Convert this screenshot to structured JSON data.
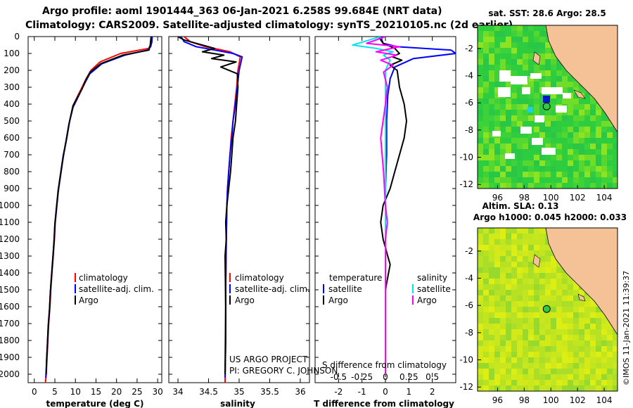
{
  "header": {
    "line1": "Argo profile: aoml 1901444_363 06-Jan-2021 6.258S 99.684E (NRT data)",
    "line2": "Climatology: CARS2009. Satellite-adjusted climatology: synTS_20210105.nc (2d earlier)"
  },
  "colors": {
    "climatology": "#ff0000",
    "satellite_temp": "#0000ff",
    "argo": "#000000",
    "satellite_sal": "#00e5ee",
    "argo_sal": "#ff00ff",
    "land": "#f5c297",
    "sea": "#2ecc40"
  },
  "chart_data": [
    {
      "type": "line",
      "name": "temperature-panel",
      "xlabel": "temperature (deg C)",
      "ylabel": "",
      "xlim": [
        -1.5,
        31
      ],
      "ylim": [
        2050,
        0
      ],
      "xticks": [
        0,
        5,
        10,
        15,
        20,
        25,
        30
      ],
      "yticks": [
        0,
        100,
        200,
        300,
        400,
        500,
        600,
        700,
        800,
        900,
        1000,
        1100,
        1200,
        1300,
        1400,
        1500,
        1600,
        1700,
        1800,
        1900,
        2000
      ],
      "legend": [
        "climatology",
        "satellite-adj. clim.",
        "Argo"
      ],
      "series": [
        {
          "name": "climatology",
          "color": "#ff0000",
          "x": [
            28.7,
            28.5,
            27.8,
            21,
            16,
            13.8,
            12.6,
            11.6,
            10.6,
            9.6,
            8.6,
            7.9,
            7.1,
            6.5,
            5.9,
            5.5,
            5.1,
            4.9,
            4.6,
            4.3,
            4.0,
            3.8,
            3.5,
            3.3,
            3.1,
            2.9,
            2.7
          ],
          "y": [
            0,
            40,
            70,
            100,
            150,
            200,
            250,
            300,
            350,
            400,
            500,
            600,
            700,
            800,
            900,
            1000,
            1100,
            1200,
            1300,
            1400,
            1500,
            1600,
            1700,
            1800,
            1900,
            2000,
            2050
          ]
        },
        {
          "name": "satellite-adj. clim.",
          "color": "#0000ff",
          "x": [
            28.6,
            28.6,
            28.3,
            27.5,
            22,
            16.5,
            13.5,
            12.4,
            11.4,
            10.4,
            9.4,
            8.4,
            7.7,
            7.0,
            6.4,
            5.8,
            5.4,
            5.0,
            4.8,
            4.5,
            4.2,
            3.9,
            3.7,
            3.4,
            3.2,
            3.0,
            2.8
          ],
          "y": [
            0,
            30,
            60,
            80,
            110,
            160,
            220,
            270,
            320,
            370,
            420,
            520,
            620,
            720,
            820,
            920,
            1020,
            1120,
            1220,
            1320,
            1420,
            1520,
            1620,
            1720,
            1820,
            1920,
            2020
          ]
        },
        {
          "name": "Argo",
          "color": "#000000",
          "x": [
            28.4,
            28.2,
            27.9,
            21.5,
            16.2,
            13.6,
            12.5,
            11.6,
            10.5,
            9.4,
            8.5,
            7.8,
            7.0,
            6.4,
            5.8,
            5.4,
            5.0,
            4.8,
            4.5,
            4.2,
            3.9,
            3.7,
            3.4,
            3.2,
            3.0,
            2.9
          ],
          "y": [
            0,
            50,
            80,
            110,
            160,
            210,
            260,
            310,
            360,
            410,
            510,
            610,
            710,
            810,
            910,
            1010,
            1110,
            1210,
            1310,
            1410,
            1510,
            1610,
            1710,
            1810,
            1910,
            2000
          ]
        }
      ]
    },
    {
      "type": "line",
      "name": "salinity-panel",
      "xlabel": "salinity",
      "ylabel": "",
      "xlim": [
        33.85,
        36.15
      ],
      "ylim": [
        2050,
        0
      ],
      "xticks": [
        34,
        34.5,
        35,
        35.5,
        36
      ],
      "xtick_labels": [
        "34",
        "34.5",
        "35",
        "35.5",
        "36"
      ],
      "legend": [
        "climatology",
        "satellite-adj. clim.",
        "Argo"
      ],
      "series": [
        {
          "name": "climatology",
          "color": "#ff0000",
          "x": [
            34.1,
            34.2,
            34.45,
            34.85,
            35.02,
            34.98,
            34.96,
            34.93,
            34.9,
            34.87,
            34.85,
            34.83,
            34.81,
            34.8,
            34.79,
            34.78,
            34.78,
            34.77
          ],
          "y": [
            0,
            30,
            60,
            90,
            120,
            200,
            300,
            400,
            500,
            600,
            700,
            800,
            900,
            1000,
            1200,
            1500,
            1800,
            2050
          ]
        },
        {
          "name": "satellite-adj. clim.",
          "color": "#0000ff",
          "x": [
            34.05,
            34.1,
            34.3,
            34.6,
            34.9,
            35.05,
            35.0,
            34.97,
            34.94,
            34.9,
            34.88,
            34.85,
            34.83,
            34.81,
            34.8,
            34.79,
            34.78,
            34.78,
            34.77
          ],
          "y": [
            0,
            30,
            60,
            80,
            100,
            120,
            200,
            300,
            400,
            500,
            600,
            700,
            800,
            900,
            1000,
            1200,
            1500,
            1800,
            2020
          ]
        },
        {
          "name": "Argo",
          "color": "#000000",
          "x": [
            34.0,
            34.1,
            34.6,
            34.4,
            34.75,
            34.55,
            34.95,
            34.7,
            34.97,
            34.98,
            34.96,
            34.94,
            34.9,
            34.88,
            34.86,
            34.83,
            34.8,
            34.78,
            34.79,
            34.77,
            34.78,
            34.77
          ],
          "y": [
            0,
            20,
            70,
            90,
            110,
            130,
            150,
            180,
            220,
            300,
            400,
            500,
            600,
            700,
            800,
            900,
            1000,
            1100,
            1200,
            1300,
            1600,
            2000
          ]
        }
      ]
    },
    {
      "type": "line",
      "name": "difference-panel",
      "xlabel": "T difference from climatology",
      "ylabel": "",
      "xlim": [
        -3,
        3
      ],
      "ylim": [
        2050,
        0
      ],
      "xticks": [
        -2,
        -1,
        0,
        1,
        2
      ],
      "xtick_labels": [
        "-2",
        "-1",
        "0",
        "1",
        "2"
      ],
      "s_xticks": [
        -0.5,
        -0.25,
        0,
        0.25,
        0.5
      ],
      "s_xtick_labels": [
        "-0.5",
        "-0.25",
        "0",
        "0.25",
        "0.5"
      ],
      "s_xlim": [
        -0.75,
        0.75
      ],
      "s_xlabel": "S difference from climatology",
      "legend_temperature_title": "temperature",
      "legend_salinity_title": "salinity",
      "legend_temperature": [
        "satellite",
        "Argo"
      ],
      "legend_salinity": [
        "satellite",
        "Argo"
      ],
      "series": [
        {
          "name": "temperature satellite",
          "color": "#0000ff",
          "axis": "T",
          "x": [
            -0.2,
            -0.1,
            0.5,
            2.8,
            3.0,
            1.2,
            0.4,
            0.2,
            0.1,
            0.05,
            0.05,
            0.0,
            0.0,
            0.0,
            0.0
          ],
          "y": [
            0,
            40,
            60,
            80,
            100,
            130,
            180,
            250,
            350,
            500,
            700,
            900,
            1200,
            1600,
            2000
          ]
        },
        {
          "name": "temperature Argo",
          "color": "#000000",
          "axis": "T",
          "x": [
            -0.3,
            -0.1,
            0.4,
            0.6,
            0.3,
            0.7,
            0.2,
            0.5,
            0.6,
            0.8,
            0.9,
            0.8,
            0.6,
            0.4,
            0.2,
            -0.1,
            -0.2,
            -0.1,
            0.1,
            0.2,
            0.0,
            0.0,
            0.0
          ],
          "y": [
            0,
            40,
            70,
            100,
            120,
            140,
            170,
            200,
            300,
            400,
            500,
            600,
            700,
            800,
            900,
            1000,
            1100,
            1200,
            1300,
            1350,
            1500,
            1800,
            2000
          ]
        },
        {
          "name": "salinity satellite",
          "color": "#00e5ee",
          "axis": "S",
          "x": [
            -0.05,
            -0.35,
            -0.1,
            0.08,
            -0.02,
            0.05,
            0.0,
            0.0,
            0.0,
            0.0,
            0.0,
            0.0
          ],
          "y": [
            0,
            50,
            70,
            90,
            110,
            140,
            200,
            400,
            700,
            1000,
            1500,
            2000
          ]
        },
        {
          "name": "salinity Argo",
          "color": "#ff00ff",
          "axis": "S",
          "x": [
            0.0,
            -0.2,
            0.15,
            -0.1,
            0.12,
            -0.05,
            0.08,
            -0.02,
            0.02,
            0.0,
            -0.05,
            -0.02,
            0.0,
            0.02,
            0.0,
            0.0,
            0.0
          ],
          "y": [
            0,
            40,
            60,
            90,
            110,
            140,
            170,
            210,
            300,
            400,
            600,
            800,
            1000,
            1100,
            1200,
            1500,
            2000
          ]
        }
      ]
    },
    {
      "type": "heatmap",
      "name": "sst-map",
      "title": "sat. SST: 28.6 Argo: 28.5",
      "xlim": [
        94.5,
        105
      ],
      "ylim": [
        -12.3,
        -0.3
      ],
      "xticks": [
        96,
        98,
        100,
        102,
        104
      ],
      "yticks": [
        -2,
        -4,
        -6,
        -8,
        -10,
        -12
      ],
      "float_position": {
        "lon": 99.684,
        "lat": -6.258
      }
    },
    {
      "type": "heatmap",
      "name": "sla-map",
      "title_line1": "Altim. SLA: 0.13",
      "title_line2": "Argo h1000: 0.045 h2000: 0.033",
      "xlim": [
        94.5,
        105
      ],
      "ylim": [
        -12.3,
        -0.3
      ],
      "xticks": [
        96,
        98,
        100,
        102,
        104
      ],
      "yticks": [
        -2,
        -4,
        -6,
        -8,
        -10,
        -12
      ],
      "float_position": {
        "lon": 99.684,
        "lat": -6.258
      }
    }
  ],
  "annotations": {
    "project": "US ARGO PROJECT",
    "pi": "PI: GREGORY C. JOHNSON",
    "credit": "©IMOS 11-Jan-2021 11:39:37"
  }
}
